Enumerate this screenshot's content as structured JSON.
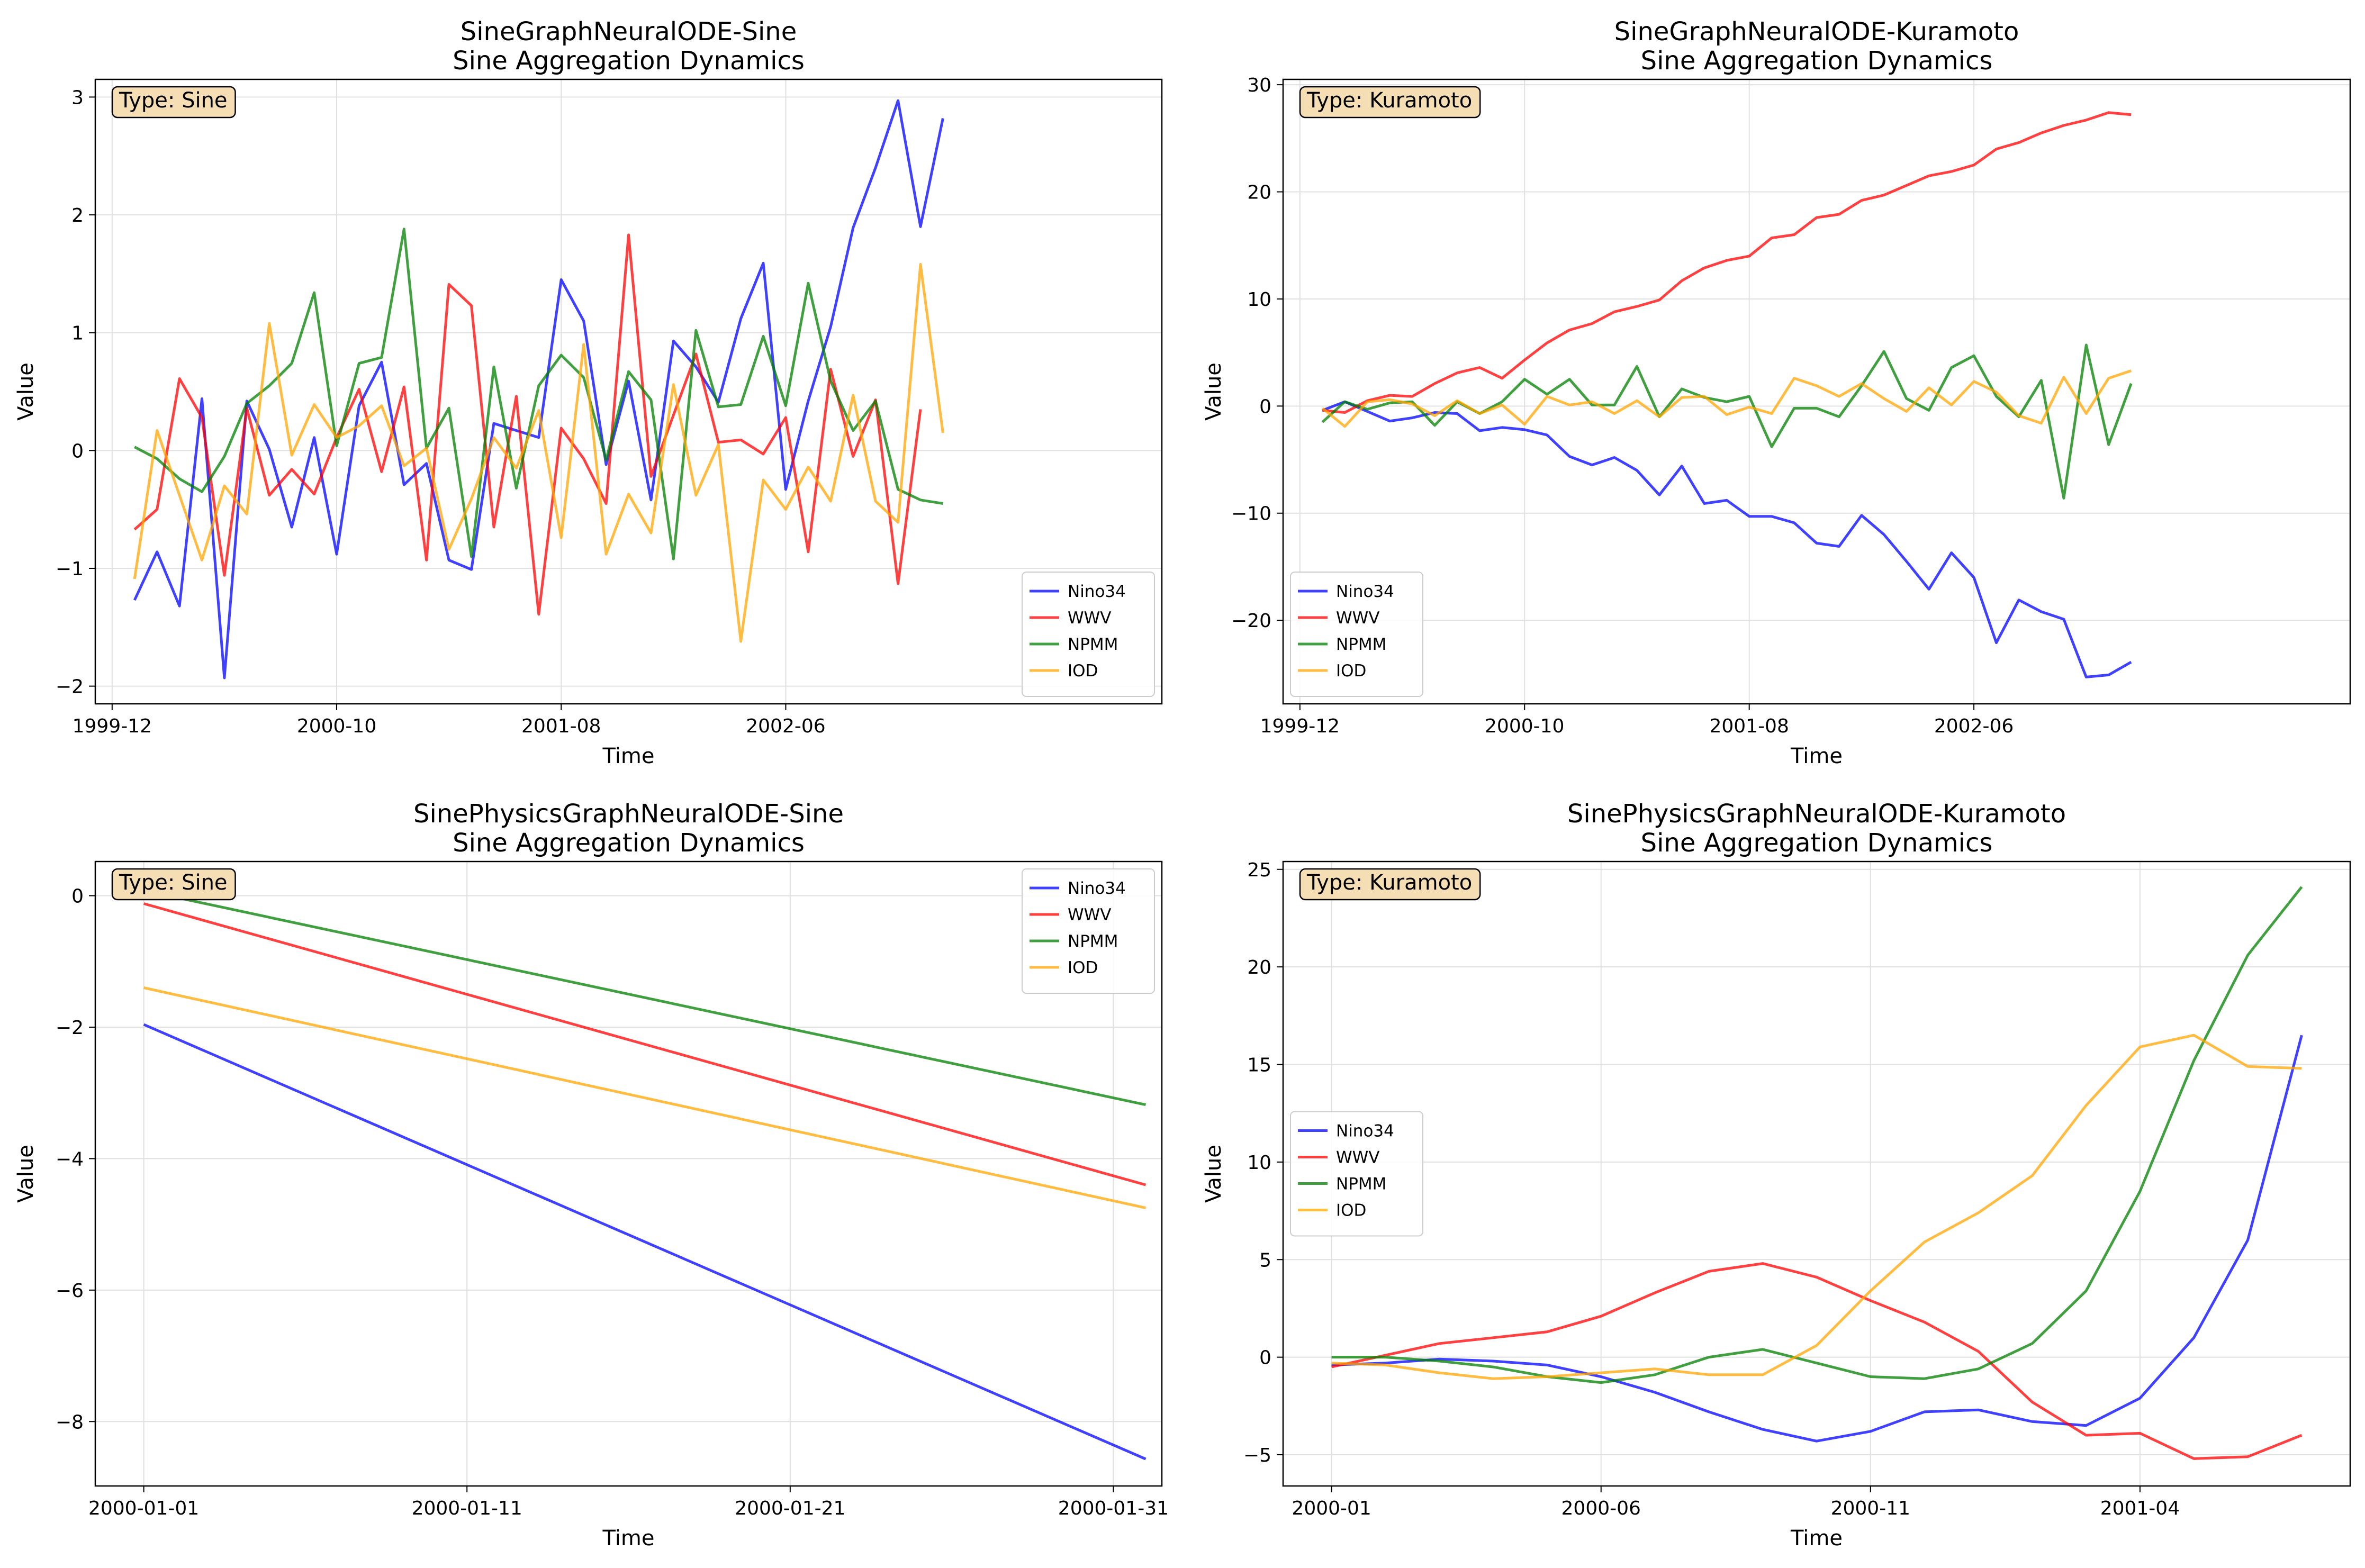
{
  "chart_data": [
    {
      "type": "line",
      "title": "SineGraphNeuralODE-Sine",
      "subtitle": "Sine Aggregation Dynamics",
      "xlabel": "Time",
      "ylabel": "Value",
      "badge": "Type: Sine",
      "legend_position": "lower-right",
      "grid": true,
      "xlim": [
        -0.75,
        46.75
      ],
      "ylim": [
        -2.15,
        3.15
      ],
      "xticks": [
        {
          "v": 0,
          "label": "1999-12"
        },
        {
          "v": 10,
          "label": "2000-10"
        },
        {
          "v": 20,
          "label": "2001-08"
        },
        {
          "v": 30,
          "label": "2002-06"
        }
      ],
      "yticks": [
        -2,
        -1,
        0,
        1,
        2,
        3
      ],
      "x": [
        1,
        2,
        3,
        4,
        5,
        6,
        7,
        8,
        9,
        10,
        11,
        12,
        13,
        14,
        15,
        16,
        17,
        18,
        19,
        20,
        21,
        22,
        23,
        24,
        25,
        26,
        27,
        28,
        29,
        30,
        31,
        32,
        33,
        34,
        35,
        36,
        37,
        38,
        39,
        40,
        41,
        42,
        43,
        44,
        45,
        46
      ],
      "series": [
        {
          "name": "Nino34",
          "color": "#0000ff",
          "values": [
            -1.27,
            -0.86,
            -1.32,
            0.44,
            -1.93,
            0.42,
            0.01,
            -0.65,
            0.11,
            -0.88,
            0.38,
            0.75,
            -0.29,
            -0.11,
            -0.93,
            -1.01,
            0.23,
            0.17,
            0.11,
            1.45,
            1.1,
            -0.12,
            0.59,
            -0.42,
            0.93,
            0.71,
            0.41,
            1.12,
            1.59,
            -0.33,
            0.42,
            1.05,
            1.89,
            2.4,
            2.97,
            1.9,
            2.82,
            null,
            null,
            null,
            null,
            null,
            null,
            null,
            null,
            null
          ]
        },
        {
          "name": "WWV",
          "color": "#ff0000",
          "values": [
            -0.67,
            -0.5,
            0.61,
            0.28,
            -1.06,
            0.36,
            -0.38,
            -0.16,
            -0.37,
            0.11,
            0.52,
            -0.18,
            0.54,
            -0.93,
            1.41,
            1.23,
            -0.65,
            0.46,
            -1.39,
            0.19,
            -0.07,
            -0.45,
            1.83,
            -0.22,
            0.3,
            0.82,
            0.07,
            0.09,
            -0.03,
            0.28,
            -0.86,
            0.69,
            -0.05,
            0.43,
            -1.13,
            0.35,
            null,
            null,
            null,
            null,
            null,
            null,
            null,
            null,
            null,
            null
          ]
        },
        {
          "name": "NPMM",
          "color": "#008000",
          "values": [
            0.03,
            -0.07,
            -0.24,
            -0.35,
            -0.05,
            0.4,
            0.55,
            0.74,
            1.34,
            0.04,
            0.74,
            0.79,
            1.88,
            0.02,
            0.36,
            -0.9,
            0.71,
            -0.32,
            0.55,
            0.81,
            0.62,
            -0.08,
            0.67,
            0.43,
            -0.92,
            1.02,
            0.37,
            0.39,
            0.97,
            0.38,
            1.42,
            0.59,
            0.17,
            0.42,
            -0.33,
            -0.42,
            -0.45,
            null,
            null,
            null,
            null,
            null,
            null,
            null,
            null,
            null
          ]
        },
        {
          "name": "IOD",
          "color": "#ffa500",
          "values": [
            -1.09,
            0.17,
            -0.38,
            -0.93,
            -0.3,
            -0.54,
            1.08,
            -0.04,
            0.39,
            0.11,
            0.21,
            0.38,
            -0.13,
            0.02,
            -0.84,
            -0.41,
            0.11,
            -0.15,
            0.34,
            -0.74,
            0.9,
            -0.88,
            -0.37,
            -0.7,
            0.56,
            -0.38,
            0.05,
            -1.62,
            -0.25,
            -0.5,
            -0.14,
            -0.43,
            0.47,
            -0.43,
            -0.61,
            1.58,
            0.15,
            null,
            null,
            null,
            null,
            null,
            null,
            null,
            null,
            null
          ]
        }
      ]
    },
    {
      "type": "line",
      "title": "SineGraphNeuralODE-Kuramoto",
      "subtitle": "Sine Aggregation Dynamics",
      "xlabel": "Time",
      "ylabel": "Value",
      "badge": "Type: Kuramoto",
      "legend_position": "lower-left",
      "grid": true,
      "xlim": [
        -0.75,
        46.75
      ],
      "ylim": [
        -27.8,
        30.5
      ],
      "xticks": [
        {
          "v": 0,
          "label": "1999-12"
        },
        {
          "v": 10,
          "label": "2000-10"
        },
        {
          "v": 20,
          "label": "2001-08"
        },
        {
          "v": 30,
          "label": "2002-06"
        }
      ],
      "yticks": [
        -20,
        -10,
        0,
        10,
        20,
        30
      ],
      "x": [
        1,
        2,
        3,
        4,
        5,
        6,
        7,
        8,
        9,
        10,
        11,
        12,
        13,
        14,
        15,
        16,
        17,
        18,
        19,
        20,
        21,
        22,
        23,
        24,
        25,
        26,
        27,
        28,
        29,
        30,
        31,
        32,
        33,
        34,
        35,
        36,
        37,
        38,
        39,
        40,
        41,
        42,
        43,
        44,
        45,
        46
      ],
      "series": [
        {
          "name": "Nino34",
          "color": "#0000ff",
          "values": [
            -0.4,
            0.4,
            -0.5,
            -1.4,
            -1.1,
            -0.6,
            -0.7,
            -2.3,
            -2.0,
            -2.2,
            -2.7,
            -4.7,
            -5.5,
            -4.8,
            -6.0,
            -8.3,
            -5.6,
            -9.1,
            -8.8,
            -10.3,
            -10.3,
            -10.9,
            -12.8,
            -13.1,
            -10.2,
            -12.0,
            -14.5,
            -17.1,
            -13.7,
            -16.0,
            -22.1,
            -18.1,
            -19.2,
            -19.9,
            -25.3,
            -25.1,
            -23.9,
            null,
            null,
            null,
            null,
            null,
            null,
            null,
            null,
            null
          ]
        },
        {
          "name": "WWV",
          "color": "#ff0000",
          "values": [
            -0.4,
            -0.6,
            0.5,
            1.0,
            0.9,
            2.1,
            3.1,
            3.6,
            2.6,
            4.3,
            5.9,
            7.1,
            7.7,
            8.8,
            9.3,
            9.9,
            11.7,
            12.9,
            13.6,
            14.0,
            15.7,
            16.0,
            17.6,
            17.9,
            19.2,
            19.7,
            20.6,
            21.5,
            21.9,
            22.5,
            24.0,
            24.6,
            25.5,
            26.2,
            26.7,
            27.4,
            27.2,
            null,
            null,
            null,
            null,
            null,
            null,
            null,
            null,
            null
          ]
        },
        {
          "name": "NPMM",
          "color": "#008000",
          "values": [
            -1.5,
            0.4,
            -0.3,
            0.3,
            0.4,
            -1.8,
            0.4,
            -0.7,
            0.4,
            2.5,
            1.1,
            2.5,
            0.1,
            0.1,
            3.7,
            -1.0,
            1.6,
            0.8,
            0.4,
            0.9,
            -3.8,
            -0.2,
            -0.2,
            -1.0,
            1.9,
            5.1,
            0.7,
            -0.4,
            3.6,
            4.7,
            0.9,
            -1.0,
            2.4,
            -8.6,
            5.7,
            -3.6,
            2.1,
            null,
            null,
            null,
            null,
            null,
            null,
            null,
            null,
            null
          ]
        },
        {
          "name": "IOD",
          "color": "#ffa500",
          "values": [
            -0.2,
            -1.9,
            0.4,
            0.6,
            0.2,
            -0.9,
            0.5,
            -0.7,
            0.1,
            -1.7,
            0.9,
            0.1,
            0.4,
            -0.7,
            0.5,
            -1.0,
            0.8,
            0.9,
            -0.8,
            -0.1,
            -0.7,
            2.6,
            1.9,
            0.9,
            2.1,
            0.7,
            -0.5,
            1.7,
            0.1,
            2.3,
            1.3,
            -0.9,
            -1.6,
            2.7,
            -0.7,
            2.6,
            3.3,
            null,
            null,
            null,
            null,
            null,
            null,
            null,
            null,
            null
          ]
        }
      ]
    },
    {
      "type": "line",
      "title": "SinePhysicsGraphNeuralODE-Sine",
      "subtitle": "Sine Aggregation Dynamics",
      "xlabel": "Time",
      "ylabel": "Value",
      "badge": "Type: Sine",
      "legend_position": "upper-right",
      "grid": true,
      "xlim": [
        -1.5,
        31.5
      ],
      "ylim": [
        -8.98,
        0.52
      ],
      "xticks": [
        {
          "v": 0,
          "label": "2000-01-01"
        },
        {
          "v": 10,
          "label": "2000-01-11"
        },
        {
          "v": 20,
          "label": "2000-01-21"
        },
        {
          "v": 30,
          "label": "2000-01-31"
        }
      ],
      "yticks": [
        -8,
        -6,
        -4,
        -2,
        0
      ],
      "x": [
        0,
        31
      ],
      "series": [
        {
          "name": "Nino34",
          "color": "#0000ff",
          "values": [
            -1.96,
            -8.57
          ]
        },
        {
          "name": "WWV",
          "color": "#ff0000",
          "values": [
            -0.12,
            -4.4
          ]
        },
        {
          "name": "NPMM",
          "color": "#008000",
          "values": [
            0.08,
            -3.18
          ]
        },
        {
          "name": "IOD",
          "color": "#ffa500",
          "values": [
            -1.4,
            -4.75
          ]
        }
      ]
    },
    {
      "type": "line",
      "title": "SinePhysicsGraphNeuralODE-Kuramoto",
      "subtitle": "Sine Aggregation Dynamics",
      "xlabel": "Time",
      "ylabel": "Value",
      "badge": "Type: Kuramoto",
      "legend_position": "center-left",
      "grid": true,
      "xlim": [
        -0.9,
        18.9
      ],
      "ylim": [
        -6.6,
        25.4
      ],
      "xticks": [
        {
          "v": 0,
          "label": "2000-01"
        },
        {
          "v": 5,
          "label": "2000-06"
        },
        {
          "v": 10,
          "label": "2000-11"
        },
        {
          "v": 15,
          "label": "2001-04"
        }
      ],
      "yticks": [
        -5,
        0,
        5,
        10,
        15,
        20,
        25
      ],
      "x": [
        0,
        1,
        2,
        3,
        4,
        5,
        6,
        7,
        8,
        9,
        10,
        11,
        12,
        13,
        14,
        15,
        16,
        17,
        18
      ],
      "series": [
        {
          "name": "Nino34",
          "color": "#0000ff",
          "values": [
            -0.4,
            -0.3,
            -0.1,
            -0.2,
            -0.4,
            -1.0,
            -1.8,
            -2.8,
            -3.7,
            -4.3,
            -3.8,
            -2.8,
            -2.7,
            -3.3,
            -3.5,
            -2.1,
            1.0,
            6.0,
            16.5
          ]
        },
        {
          "name": "WWV",
          "color": "#ff0000",
          "values": [
            -0.5,
            0.1,
            0.7,
            1.0,
            1.3,
            2.1,
            3.3,
            4.4,
            4.8,
            4.1,
            2.9,
            1.8,
            0.3,
            -2.3,
            -4.0,
            -3.9,
            -5.2,
            -5.1,
            -4.0
          ]
        },
        {
          "name": "NPMM",
          "color": "#008000",
          "values": [
            0.0,
            0.0,
            -0.2,
            -0.5,
            -1.0,
            -1.3,
            -0.9,
            0.0,
            0.4,
            -0.3,
            -1.0,
            -1.1,
            -0.6,
            0.7,
            3.4,
            8.5,
            15.2,
            20.6,
            24.1
          ]
        },
        {
          "name": "IOD",
          "color": "#ffa500",
          "values": [
            -0.3,
            -0.4,
            -0.8,
            -1.1,
            -1.0,
            -0.8,
            -0.6,
            -0.9,
            -0.9,
            0.6,
            3.4,
            5.9,
            7.4,
            9.3,
            12.9,
            15.9,
            16.5,
            14.9,
            14.8
          ]
        }
      ]
    }
  ]
}
